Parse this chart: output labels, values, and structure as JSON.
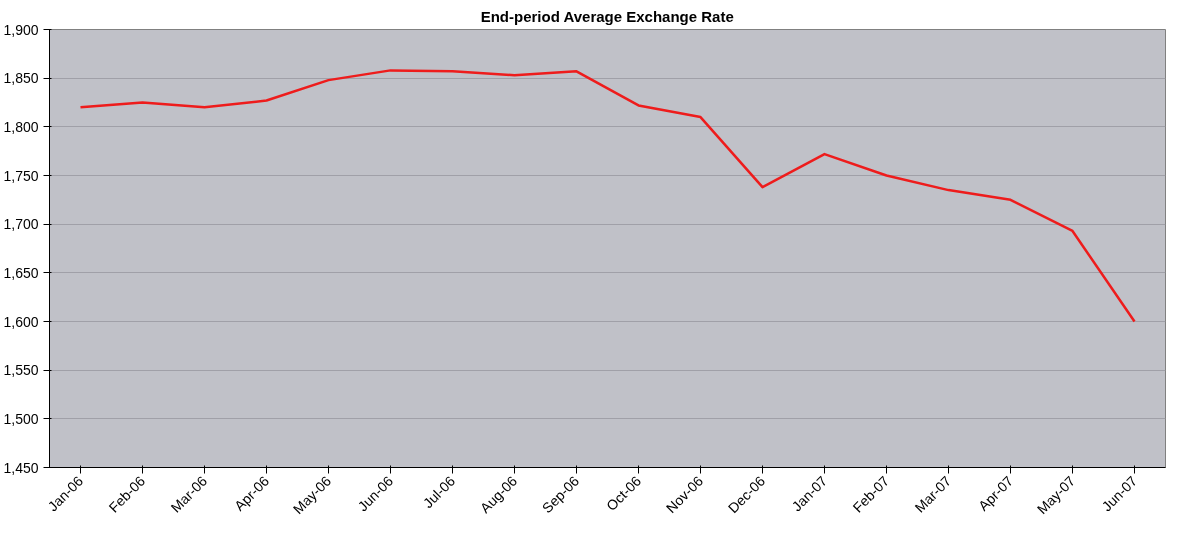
{
  "chart_data": {
    "type": "line",
    "title": "End-period Average Exchange Rate",
    "categories": [
      "Jan-06",
      "Feb-06",
      "Mar-06",
      "Apr-06",
      "May-06",
      "Jun-06",
      "Jul-06",
      "Aug-06",
      "Sep-06",
      "Oct-06",
      "Nov-06",
      "Dec-06",
      "Jan-07",
      "Feb-07",
      "Mar-07",
      "Apr-07",
      "May-07",
      "Jun-07"
    ],
    "series": [
      {
        "color": "#ee1c1c",
        "values": [
          1820,
          1825,
          1820,
          1827,
          1848,
          1858,
          1857,
          1853,
          1857,
          1822,
          1810,
          1738,
          1772,
          1750,
          1735,
          1725,
          1693,
          1600
        ]
      }
    ],
    "ylim": [
      1450,
      1900
    ],
    "yticks": [
      {
        "value": 1450,
        "label": "1,450"
      },
      {
        "value": 1500,
        "label": "1,500"
      },
      {
        "value": 1550,
        "label": "1,550"
      },
      {
        "value": 1600,
        "label": "1,600"
      },
      {
        "value": 1650,
        "label": "1,650"
      },
      {
        "value": 1700,
        "label": "1,700"
      },
      {
        "value": 1750,
        "label": "1,750"
      },
      {
        "value": 1800,
        "label": "1,800"
      },
      {
        "value": 1850,
        "label": "1,850"
      },
      {
        "value": 1900,
        "label": "1,900"
      }
    ],
    "grid": "y",
    "marker": "none",
    "line_style": "solid"
  }
}
